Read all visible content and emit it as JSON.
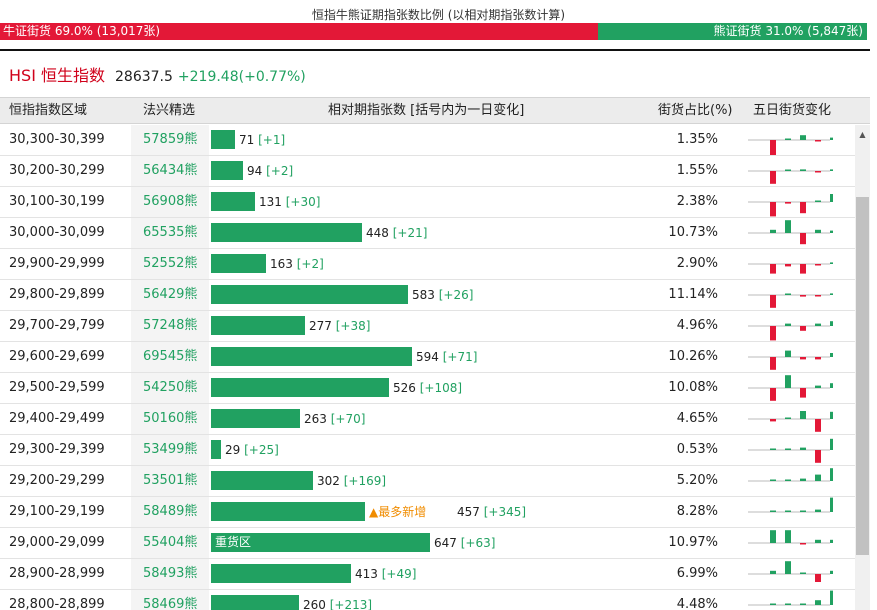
{
  "top_title": "恒指牛熊证期指张数比例 (以相对期指张数计算)",
  "ratio": {
    "bull_label": "牛证街货 69.0% (13,017张)",
    "bear_label": "熊证街货 31.0% (5,847张)",
    "bull_pct": 69.0,
    "bear_pct": 31.0
  },
  "index": {
    "name": "HSI 恒生指数",
    "price": "28637.5",
    "change": "+219.48(+0.77%)"
  },
  "columns": {
    "range": "恒指指数区域",
    "pick": "法兴精选",
    "contracts": "相对期指张数 [括号内为一日变化]",
    "share": "街货占比(%)",
    "five_day": "五日街货变化"
  },
  "colors": {
    "up": "#e31837",
    "down": "#21a161",
    "highlight": "#f08c00"
  },
  "rows": [
    {
      "range": "30,300-30,399",
      "pick": "57859熊",
      "contracts": 71,
      "label": "71",
      "delta": "[+1]",
      "share": "1.35%",
      "spark": [
        -2,
        0,
        0.6,
        -0.1,
        0.3
      ]
    },
    {
      "range": "30,200-30,299",
      "pick": "56434熊",
      "contracts": 94,
      "label": "94",
      "delta": "[+2]",
      "share": "1.55%",
      "spark": [
        -1.6,
        0,
        0.2,
        -0.1,
        0.2
      ]
    },
    {
      "range": "30,100-30,199",
      "pick": "56908熊",
      "contracts": 131,
      "label": "131",
      "delta": "[+30]",
      "share": "2.38%",
      "spark": [
        -1.8,
        -0.2,
        -1.4,
        0,
        1.0
      ]
    },
    {
      "range": "30,000-30,099",
      "pick": "65535熊",
      "contracts": 448,
      "label": "448",
      "delta": "[+21]",
      "share": "10.73%",
      "spark": [
        0.4,
        1.6,
        -1.4,
        0.4,
        0.3
      ]
    },
    {
      "range": "29,900-29,999",
      "pick": "52552熊",
      "contracts": 163,
      "label": "163",
      "delta": "[+2]",
      "share": "2.90%",
      "spark": [
        -1.2,
        -0.3,
        -1.2,
        -0.1,
        0.2
      ]
    },
    {
      "range": "29,800-29,899",
      "pick": "56429熊",
      "contracts": 583,
      "label": "583",
      "delta": "[+26]",
      "share": "11.14%",
      "spark": [
        -1.6,
        0.1,
        -0.2,
        -0.1,
        0.2
      ]
    },
    {
      "range": "29,700-29,799",
      "pick": "57248熊",
      "contracts": 277,
      "label": "277",
      "delta": "[+38]",
      "share": "4.96%",
      "spark": [
        -1.8,
        0.3,
        -0.6,
        0.3,
        0.6
      ]
    },
    {
      "range": "29,600-29,699",
      "pick": "69545熊",
      "contracts": 594,
      "label": "594",
      "delta": "[+71]",
      "share": "10.26%",
      "spark": [
        -1.6,
        0.8,
        -0.3,
        -0.3,
        0.5
      ]
    },
    {
      "range": "29,500-29,599",
      "pick": "54250熊",
      "contracts": 526,
      "label": "526",
      "delta": "[+108]",
      "share": "10.08%",
      "spark": [
        -1.6,
        1.6,
        -1.2,
        0.3,
        0.6
      ]
    },
    {
      "range": "29,400-29,499",
      "pick": "50160熊",
      "contracts": 263,
      "label": "263",
      "delta": "[+70]",
      "share": "4.65%",
      "spark": [
        -0.3,
        0,
        1.0,
        -1.6,
        0.9
      ]
    },
    {
      "range": "29,300-29,399",
      "pick": "53499熊",
      "contracts": 29,
      "label": "29",
      "delta": "[+25]",
      "share": "0.53%",
      "spark": [
        0,
        0,
        0.3,
        -1.6,
        1.4
      ]
    },
    {
      "range": "29,200-29,299",
      "pick": "53501熊",
      "contracts": 302,
      "label": "302",
      "delta": "[+169]",
      "share": "5.20%",
      "spark": [
        0,
        0,
        0.3,
        0.8,
        1.6
      ]
    },
    {
      "range": "29,100-29,199",
      "pick": "58489熊",
      "contracts": 457,
      "label": "457",
      "delta": "[+345]",
      "share": "8.28%",
      "spark": [
        0,
        0,
        0.1,
        0.3,
        1.8
      ],
      "marker": "▲最多新增"
    },
    {
      "range": "29,000-29,099",
      "pick": "55404熊",
      "contracts": 647,
      "label": "647",
      "delta": "[+63]",
      "share": "10.97%",
      "spark": [
        1.6,
        1.6,
        -0.1,
        0.4,
        0.4
      ],
      "bar_text": "重货区"
    },
    {
      "range": "28,900-28,999",
      "pick": "58493熊",
      "contracts": 413,
      "label": "413",
      "delta": "[+49]",
      "share": "6.99%",
      "spark": [
        0.4,
        1.6,
        0,
        -1.0,
        0.4
      ]
    },
    {
      "range": "28,800-28,899",
      "pick": "58469熊",
      "contracts": 260,
      "label": "260",
      "delta": "[+213]",
      "share": "4.48%",
      "spark": [
        0,
        0,
        0,
        0.6,
        1.8
      ]
    }
  ]
}
